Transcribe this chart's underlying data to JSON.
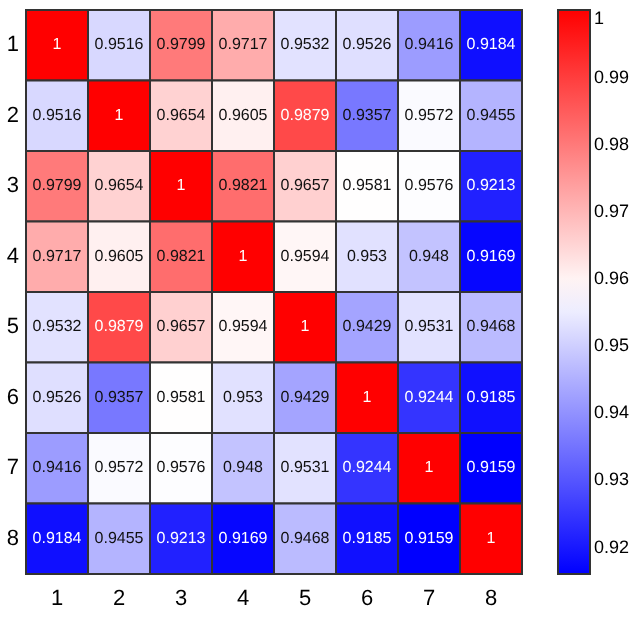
{
  "chart_data": {
    "type": "heatmap",
    "categories": [
      "1",
      "2",
      "3",
      "4",
      "5",
      "6",
      "7",
      "8"
    ],
    "y_categories": [
      "1",
      "2",
      "3",
      "4",
      "5",
      "6",
      "7",
      "8"
    ],
    "cells": [
      [
        1,
        0.9516,
        0.9799,
        0.9717,
        0.9532,
        0.9526,
        0.9416,
        0.9184
      ],
      [
        0.9516,
        1,
        0.9654,
        0.9605,
        0.9879,
        0.9357,
        0.9572,
        0.9455
      ],
      [
        0.9799,
        0.9654,
        1,
        0.9821,
        0.9657,
        0.9581,
        0.9576,
        0.9213
      ],
      [
        0.9717,
        0.9605,
        0.9821,
        1,
        0.9594,
        0.953,
        0.948,
        0.9169
      ],
      [
        0.9532,
        0.9879,
        0.9657,
        0.9594,
        1,
        0.9429,
        0.9531,
        0.9468
      ],
      [
        0.9526,
        0.9357,
        0.9581,
        0.953,
        0.9429,
        1,
        0.9244,
        0.9185
      ],
      [
        0.9416,
        0.9572,
        0.9576,
        0.948,
        0.9531,
        0.9244,
        1,
        0.9159
      ],
      [
        0.9184,
        0.9455,
        0.9213,
        0.9169,
        0.9468,
        0.9185,
        0.9159,
        1
      ]
    ],
    "clim": [
      0.9159,
      1
    ],
    "cticks": [
      0.92,
      0.93,
      0.94,
      0.95,
      0.96,
      0.97,
      0.98,
      0.99,
      1
    ],
    "data_labels": true
  }
}
